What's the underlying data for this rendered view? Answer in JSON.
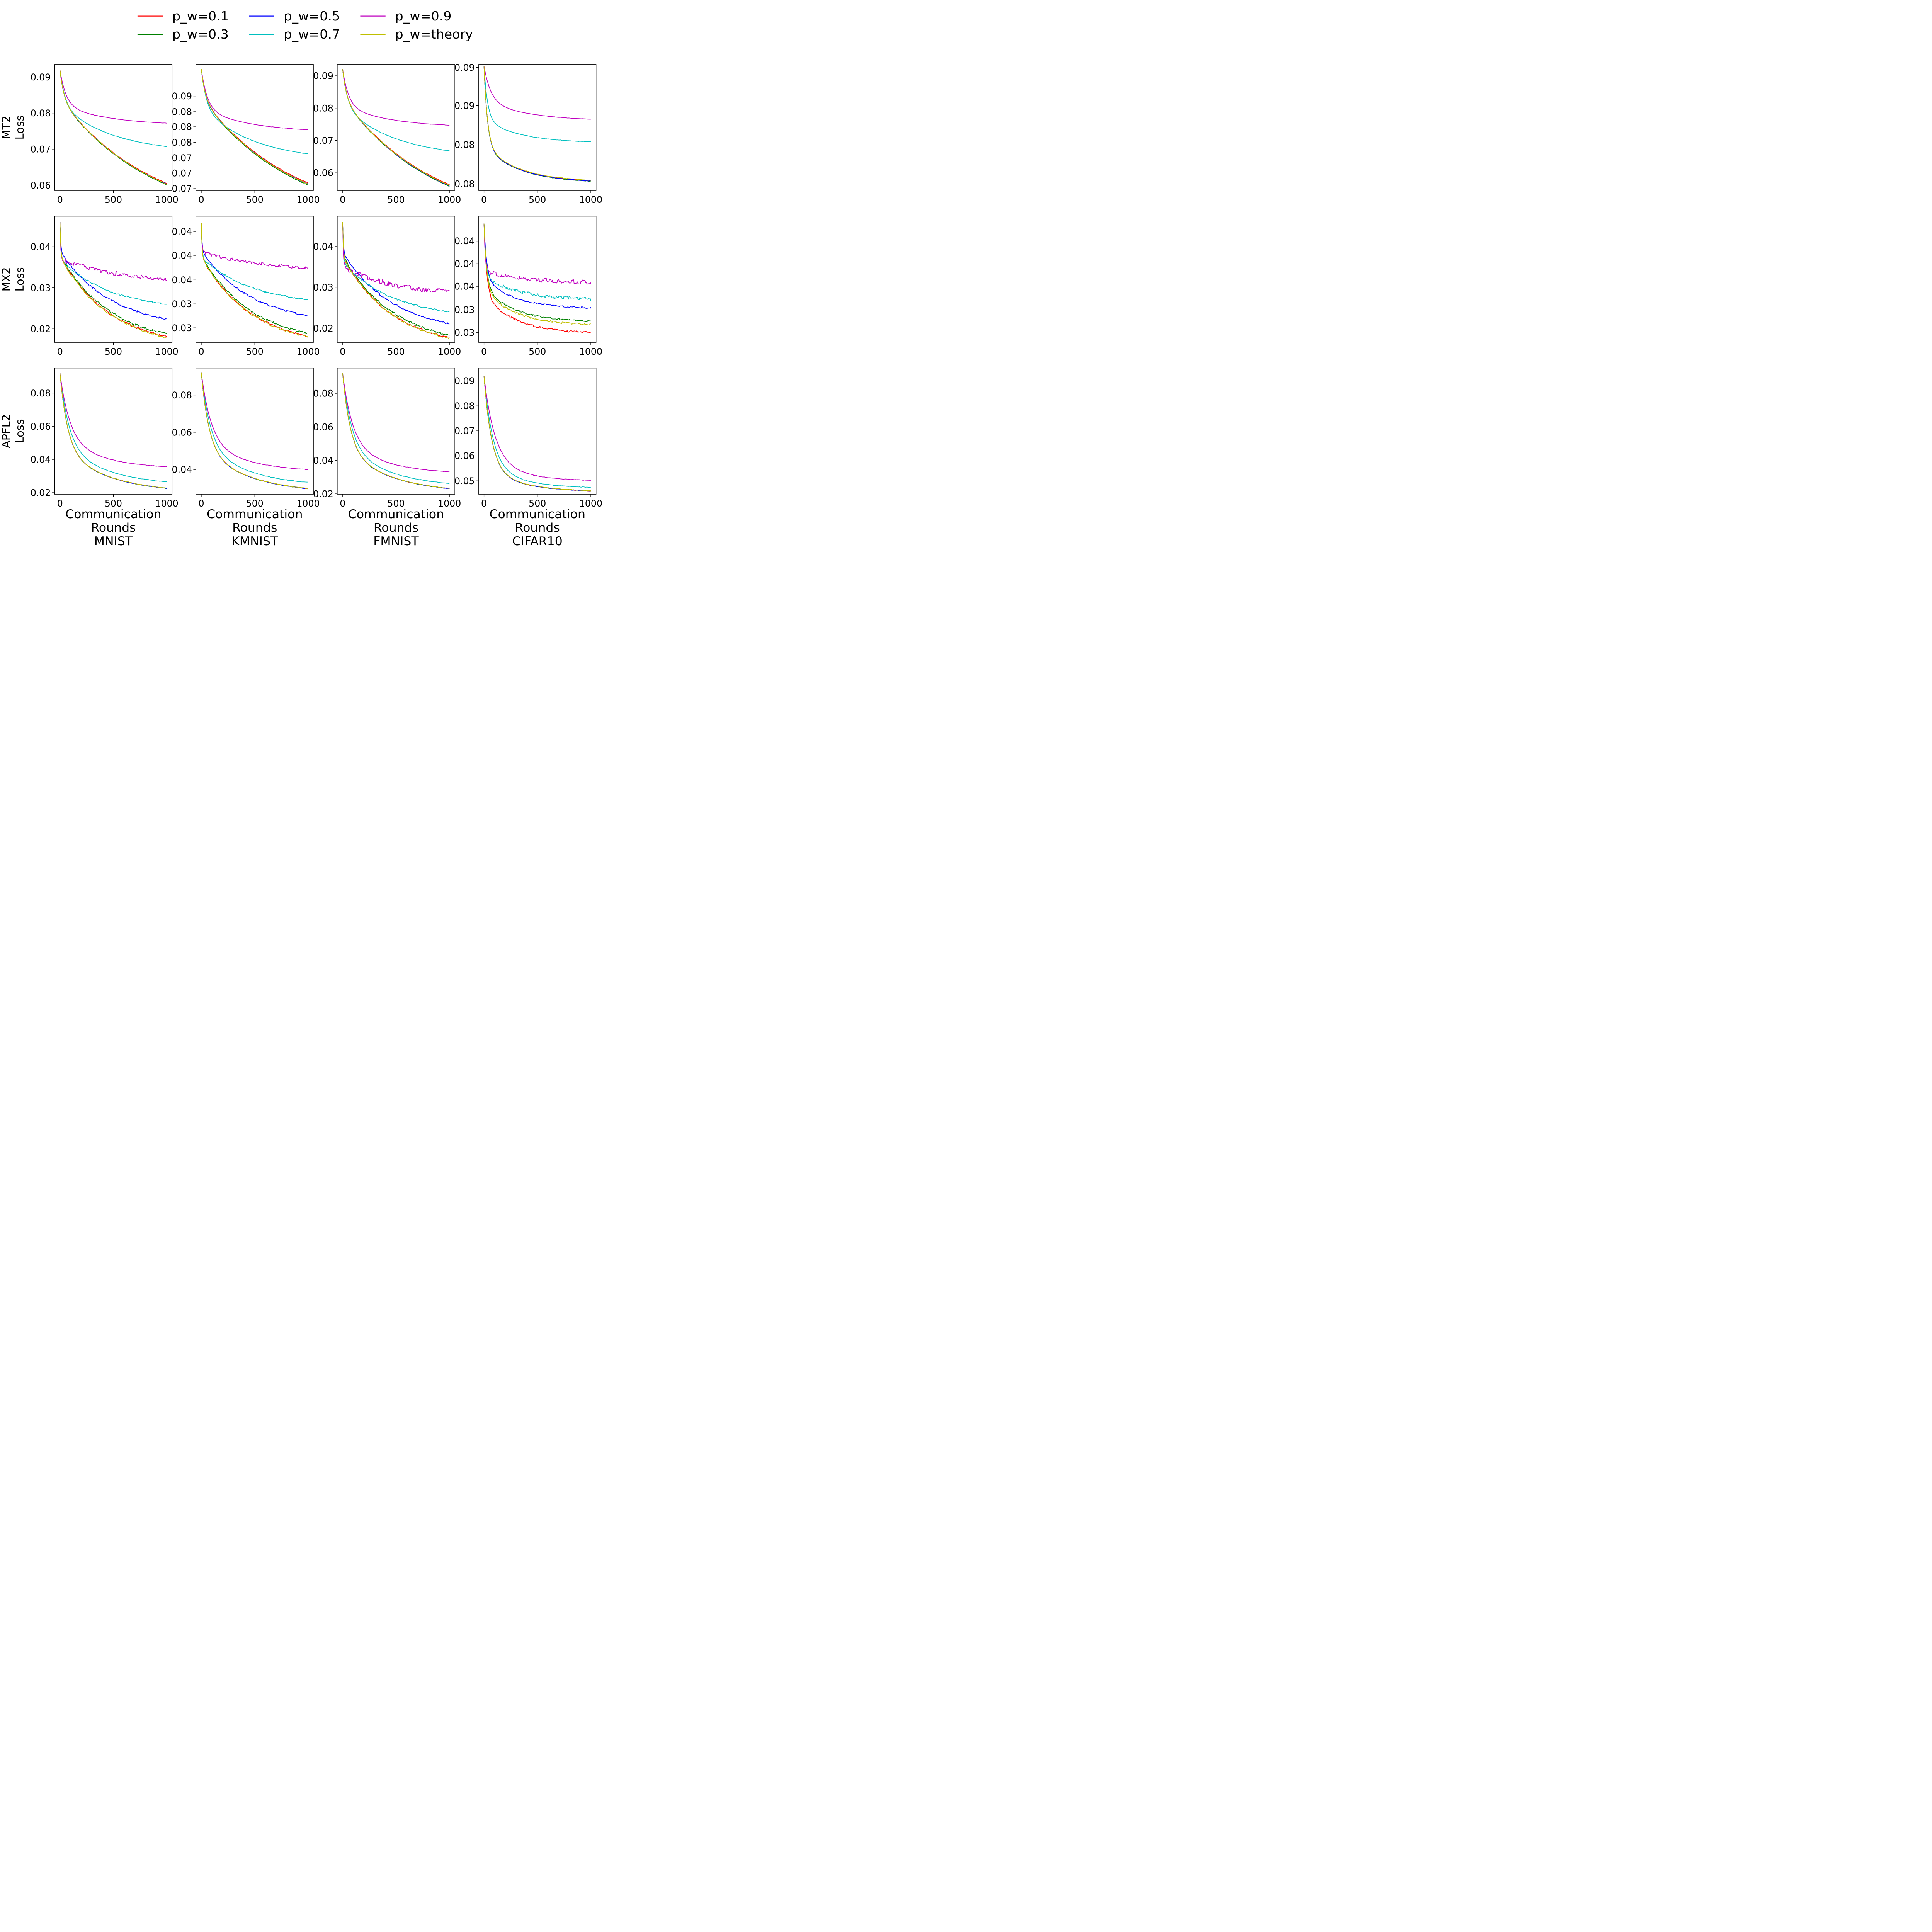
{
  "figure": {
    "legend": [
      {
        "label": "p_w=0.1",
        "color": "#ff0000"
      },
      {
        "label": "p_w=0.3",
        "color": "#008000"
      },
      {
        "label": "p_w=0.5",
        "color": "#0000ff"
      },
      {
        "label": "p_w=0.7",
        "color": "#00bfbf"
      },
      {
        "label": "p_w=0.9",
        "color": "#bf00bf"
      },
      {
        "label": "p_w=theory",
        "color": "#bfbf00"
      }
    ],
    "row_labels": [
      [
        "MT2",
        "Loss"
      ],
      [
        "MX2",
        "Loss"
      ],
      [
        "APFL2",
        "Loss"
      ]
    ],
    "column_xlabels": [
      [
        "Communication",
        "Rounds",
        "MNIST"
      ],
      [
        "Communication",
        "Rounds",
        "KMNIST"
      ],
      [
        "Communication",
        "Rounds",
        "FMNIST"
      ],
      [
        "Communication",
        "Rounds",
        "CIFAR10"
      ]
    ]
  },
  "chart_data": [
    {
      "type": "line",
      "row": 0,
      "col": 0,
      "xlim": [
        -50,
        1050
      ],
      "ylim": [
        0.0585,
        0.0935
      ],
      "xticks": [
        "0",
        "500",
        "1000"
      ],
      "yticks": [
        {
          "v": 0.06,
          "label": "0.06"
        },
        {
          "v": 0.07,
          "label": "0.07"
        },
        {
          "v": 0.08,
          "label": "0.08"
        },
        {
          "v": 0.09,
          "label": "0.09"
        }
      ],
      "start": 0.092,
      "series": [
        {
          "name": "p_w=0.1",
          "end": 0.0605,
          "shape": 0
        },
        {
          "name": "p_w=0.3",
          "end": 0.0601,
          "shape": 0
        },
        {
          "name": "p_w=0.5",
          "end": 0.0603,
          "shape": 0
        },
        {
          "name": "p_w=0.7",
          "end": 0.0707,
          "shape": 1
        },
        {
          "name": "p_w=0.9",
          "end": 0.0772,
          "shape": 2
        },
        {
          "name": "p_w=theory",
          "end": 0.0603,
          "shape": 0
        }
      ]
    },
    {
      "type": "line",
      "row": 0,
      "col": 1,
      "xlim": [
        -50,
        1050
      ],
      "ylim": [
        0.0703,
        0.0954
      ],
      "xticks": [
        "0",
        "500",
        "1000"
      ],
      "yticks": [
        {
          "v": 0.0707,
          "label": "0.07"
        },
        {
          "v": 0.0738,
          "label": "0.07"
        },
        {
          "v": 0.0768,
          "label": "0.07"
        },
        {
          "v": 0.0799,
          "label": "0.08"
        },
        {
          "v": 0.083,
          "label": "0.08"
        },
        {
          "v": 0.086,
          "label": "0.08"
        },
        {
          "v": 0.0891,
          "label": "0.09"
        }
      ],
      "start": 0.0945,
      "series": [
        {
          "name": "p_w=0.1",
          "end": 0.0718,
          "shape": 0
        },
        {
          "name": "p_w=0.3",
          "end": 0.0714,
          "shape": 0
        },
        {
          "name": "p_w=0.5",
          "end": 0.0716,
          "shape": 0
        },
        {
          "name": "p_w=0.7",
          "end": 0.0776,
          "shape": 1
        },
        {
          "name": "p_w=0.9",
          "end": 0.0824,
          "shape": 2
        },
        {
          "name": "p_w=theory",
          "end": 0.0716,
          "shape": 0
        }
      ]
    },
    {
      "type": "line",
      "row": 0,
      "col": 2,
      "xlim": [
        -50,
        1050
      ],
      "ylim": [
        0.0545,
        0.0935
      ],
      "xticks": [
        "0",
        "500",
        "1000"
      ],
      "yticks": [
        {
          "v": 0.06,
          "label": "0.06"
        },
        {
          "v": 0.07,
          "label": "0.07"
        },
        {
          "v": 0.08,
          "label": "0.08"
        },
        {
          "v": 0.09,
          "label": "0.09"
        }
      ],
      "start": 0.092,
      "series": [
        {
          "name": "p_w=0.1",
          "end": 0.0563,
          "shape": 0
        },
        {
          "name": "p_w=0.3",
          "end": 0.0558,
          "shape": 0
        },
        {
          "name": "p_w=0.5",
          "end": 0.056,
          "shape": 0
        },
        {
          "name": "p_w=0.7",
          "end": 0.0668,
          "shape": 1
        },
        {
          "name": "p_w=0.9",
          "end": 0.0747,
          "shape": 2
        },
        {
          "name": "p_w=theory",
          "end": 0.0561,
          "shape": 0
        }
      ]
    },
    {
      "type": "line",
      "row": 0,
      "col": 3,
      "xlim": [
        -50,
        1050
      ],
      "ylim": [
        0.0778,
        0.0946
      ],
      "xticks": [
        "0",
        "500",
        "1000"
      ],
      "yticks": [
        {
          "v": 0.0787,
          "label": "0.08"
        },
        {
          "v": 0.0839,
          "label": "0.08"
        },
        {
          "v": 0.0891,
          "label": "0.09"
        },
        {
          "v": 0.0942,
          "label": "0.09"
        }
      ],
      "start": 0.0944,
      "series": [
        {
          "name": "p_w=0.1",
          "end": 0.07913,
          "shape": 3
        },
        {
          "name": "p_w=0.3",
          "end": 0.07905,
          "shape": 3
        },
        {
          "name": "p_w=0.5",
          "end": 0.07908,
          "shape": 3
        },
        {
          "name": "p_w=0.7",
          "end": 0.0843,
          "shape": 3
        },
        {
          "name": "p_w=0.9",
          "end": 0.0873,
          "shape": 4
        },
        {
          "name": "p_w=theory",
          "end": 0.07918,
          "shape": 3
        }
      ]
    },
    {
      "type": "line",
      "row": 1,
      "col": 0,
      "xlim": [
        -50,
        1050
      ],
      "ylim": [
        0.0167,
        0.0474
      ],
      "xticks": [
        "0",
        "500",
        "1000"
      ],
      "yticks": [
        {
          "v": 0.02,
          "label": "0.02"
        },
        {
          "v": 0.03,
          "label": "0.03"
        },
        {
          "v": 0.04,
          "label": "0.04"
        }
      ],
      "start": 0.046,
      "series": [
        {
          "name": "p_w=0.1",
          "end": 0.0181,
          "shape": 5
        },
        {
          "name": "p_w=0.3",
          "end": 0.0188,
          "shape": 5
        },
        {
          "name": "p_w=0.5",
          "end": 0.0224,
          "shape": 5
        },
        {
          "name": "p_w=0.7",
          "end": 0.026,
          "shape": 6
        },
        {
          "name": "p_w=0.9",
          "end": 0.0322,
          "shape": 7
        },
        {
          "name": "p_w=theory",
          "end": 0.0179,
          "shape": 5
        }
      ]
    },
    {
      "type": "line",
      "row": 1,
      "col": 1,
      "xlim": [
        -50,
        1050
      ],
      "ylim": [
        0.0243,
        0.0475
      ],
      "xticks": [
        "0",
        "500",
        "1000"
      ],
      "yticks": [
        {
          "v": 0.027,
          "label": "0.03"
        },
        {
          "v": 0.0314,
          "label": "0.03"
        },
        {
          "v": 0.0358,
          "label": "0.04"
        },
        {
          "v": 0.0403,
          "label": "0.04"
        },
        {
          "v": 0.0447,
          "label": "0.04"
        }
      ],
      "start": 0.0463,
      "series": [
        {
          "name": "p_w=0.1",
          "end": 0.0254,
          "shape": 5
        },
        {
          "name": "p_w=0.3",
          "end": 0.026,
          "shape": 5
        },
        {
          "name": "p_w=0.5",
          "end": 0.0292,
          "shape": 5
        },
        {
          "name": "p_w=0.7",
          "end": 0.0322,
          "shape": 6
        },
        {
          "name": "p_w=0.9",
          "end": 0.0381,
          "shape": 7
        },
        {
          "name": "p_w=theory",
          "end": 0.0253,
          "shape": 5
        }
      ]
    },
    {
      "type": "line",
      "row": 1,
      "col": 2,
      "xlim": [
        -50,
        1050
      ],
      "ylim": [
        0.0165,
        0.0474
      ],
      "xticks": [
        "0",
        "500",
        "1000"
      ],
      "yticks": [
        {
          "v": 0.02,
          "label": "0.02"
        },
        {
          "v": 0.03,
          "label": "0.03"
        },
        {
          "v": 0.04,
          "label": "0.04"
        }
      ],
      "start": 0.046,
      "series": [
        {
          "name": "p_w=0.1",
          "end": 0.0176,
          "shape": 5
        },
        {
          "name": "p_w=0.3",
          "end": 0.0183,
          "shape": 5
        },
        {
          "name": "p_w=0.5",
          "end": 0.0211,
          "shape": 5
        },
        {
          "name": "p_w=0.7",
          "end": 0.024,
          "shape": 6
        },
        {
          "name": "p_w=0.9",
          "end": 0.0288,
          "shape": 7
        },
        {
          "name": "p_w=theory",
          "end": 0.0175,
          "shape": 5
        }
      ]
    },
    {
      "type": "line",
      "row": 1,
      "col": 3,
      "xlim": [
        -50,
        1050
      ],
      "ylim": [
        0.0285,
        0.0474
      ],
      "xticks": [
        "0",
        "500",
        "1000"
      ],
      "yticks": [
        {
          "v": 0.03,
          "label": "0.03"
        },
        {
          "v": 0.0334,
          "label": "0.03"
        },
        {
          "v": 0.0369,
          "label": "0.04"
        },
        {
          "v": 0.0403,
          "label": "0.04"
        },
        {
          "v": 0.0437,
          "label": "0.04"
        }
      ],
      "start": 0.0463,
      "series": [
        {
          "name": "p_w=0.1",
          "end": 0.03,
          "shape": 8
        },
        {
          "name": "p_w=0.3",
          "end": 0.0317,
          "shape": 8
        },
        {
          "name": "p_w=0.5",
          "end": 0.0337,
          "shape": 8
        },
        {
          "name": "p_w=0.7",
          "end": 0.035,
          "shape": 9
        },
        {
          "name": "p_w=0.9",
          "end": 0.0375,
          "shape": 10
        },
        {
          "name": "p_w=theory",
          "end": 0.0312,
          "shape": 8
        }
      ]
    },
    {
      "type": "line",
      "row": 2,
      "col": 0,
      "xlim": [
        -50,
        1050
      ],
      "ylim": [
        0.019,
        0.0951
      ],
      "xticks": [
        "0",
        "500",
        "1000"
      ],
      "yticks": [
        {
          "v": 0.02,
          "label": "0.02"
        },
        {
          "v": 0.04,
          "label": "0.04"
        },
        {
          "v": 0.06,
          "label": "0.06"
        },
        {
          "v": 0.08,
          "label": "0.08"
        }
      ],
      "start": 0.092,
      "series": [
        {
          "name": "p_w=0.1",
          "end": 0.0226,
          "shape": 11
        },
        {
          "name": "p_w=0.3",
          "end": 0.0226,
          "shape": 11
        },
        {
          "name": "p_w=0.5",
          "end": 0.0226,
          "shape": 11
        },
        {
          "name": "p_w=0.7",
          "end": 0.0265,
          "shape": 12
        },
        {
          "name": "p_w=0.9",
          "end": 0.0356,
          "shape": 13
        },
        {
          "name": "p_w=theory",
          "end": 0.0227,
          "shape": 11
        }
      ]
    },
    {
      "type": "line",
      "row": 2,
      "col": 1,
      "xlim": [
        -50,
        1050
      ],
      "ylim": [
        0.0267,
        0.0945
      ],
      "xticks": [
        "0",
        "500",
        "1000"
      ],
      "yticks": [
        {
          "v": 0.04,
          "label": "0.04"
        },
        {
          "v": 0.06,
          "label": "0.06"
        },
        {
          "v": 0.08,
          "label": "0.08"
        }
      ],
      "start": 0.092,
      "series": [
        {
          "name": "p_w=0.1",
          "end": 0.0297,
          "shape": 11
        },
        {
          "name": "p_w=0.3",
          "end": 0.0297,
          "shape": 11
        },
        {
          "name": "p_w=0.5",
          "end": 0.0297,
          "shape": 11
        },
        {
          "name": "p_w=0.7",
          "end": 0.0331,
          "shape": 12
        },
        {
          "name": "p_w=0.9",
          "end": 0.04,
          "shape": 13
        },
        {
          "name": "p_w=theory",
          "end": 0.0298,
          "shape": 11
        }
      ]
    },
    {
      "type": "line",
      "row": 2,
      "col": 2,
      "xlim": [
        -50,
        1050
      ],
      "ylim": [
        0.0197,
        0.0951
      ],
      "xticks": [
        "0",
        "500",
        "1000"
      ],
      "yticks": [
        {
          "v": 0.02,
          "label": "0.02"
        },
        {
          "v": 0.04,
          "label": "0.04"
        },
        {
          "v": 0.06,
          "label": "0.06"
        },
        {
          "v": 0.08,
          "label": "0.08"
        }
      ],
      "start": 0.092,
      "series": [
        {
          "name": "p_w=0.1",
          "end": 0.0231,
          "shape": 11
        },
        {
          "name": "p_w=0.3",
          "end": 0.0231,
          "shape": 11
        },
        {
          "name": "p_w=0.5",
          "end": 0.0231,
          "shape": 11
        },
        {
          "name": "p_w=0.7",
          "end": 0.0262,
          "shape": 12
        },
        {
          "name": "p_w=0.9",
          "end": 0.0331,
          "shape": 13
        },
        {
          "name": "p_w=theory",
          "end": 0.0232,
          "shape": 11
        }
      ]
    },
    {
      "type": "line",
      "row": 2,
      "col": 3,
      "xlim": [
        -50,
        1050
      ],
      "ylim": [
        0.0446,
        0.0951
      ],
      "xticks": [
        "0",
        "500",
        "1000"
      ],
      "yticks": [
        {
          "v": 0.05,
          "label": "0.05"
        },
        {
          "v": 0.06,
          "label": "0.06"
        },
        {
          "v": 0.07,
          "label": "0.07"
        },
        {
          "v": 0.08,
          "label": "0.08"
        },
        {
          "v": 0.09,
          "label": "0.09"
        }
      ],
      "start": 0.092,
      "series": [
        {
          "name": "p_w=0.1",
          "end": 0.046,
          "shape": 14
        },
        {
          "name": "p_w=0.3",
          "end": 0.046,
          "shape": 14
        },
        {
          "name": "p_w=0.5",
          "end": 0.046,
          "shape": 14
        },
        {
          "name": "p_w=0.7",
          "end": 0.0474,
          "shape": 15
        },
        {
          "name": "p_w=0.9",
          "end": 0.0502,
          "shape": 16
        },
        {
          "name": "p_w=theory",
          "end": 0.0461,
          "shape": 14
        }
      ]
    }
  ]
}
